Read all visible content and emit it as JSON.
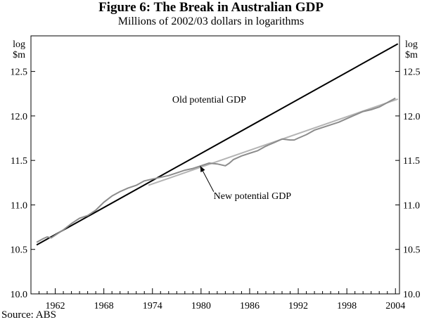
{
  "figure": {
    "title": "Figure 6: The Break in Australian GDP",
    "subtitle": "Millions of 2002/03 dollars in logarithms",
    "source": "Source: ABS"
  },
  "chart_data": {
    "type": "line",
    "title": "Figure 6: The Break in Australian GDP",
    "subtitle": "Millions of 2002/03 dollars in logarithms",
    "ylabel": [
      "log",
      "$m"
    ],
    "xlabel": "",
    "xlim": [
      1959,
      2004.5
    ],
    "ylim": [
      10.0,
      12.9
    ],
    "yticks": [
      "10.0",
      "10.5",
      "11.0",
      "11.5",
      "12.0",
      "12.5"
    ],
    "xticks": [
      "1962",
      "1968",
      "1974",
      "1980",
      "1986",
      "1992",
      "1998",
      "2004"
    ],
    "grid": false,
    "series": [
      {
        "name": "Old potential GDP",
        "color": "#000000",
        "x": [
          1959.7,
          2004.3
        ],
        "y": [
          10.55,
          12.81
        ]
      },
      {
        "name": "New potential GDP",
        "color": "#b4b4b4",
        "x": [
          1973.5,
          2004.3
        ],
        "y": [
          11.22,
          12.19
        ]
      },
      {
        "name": "GDP",
        "color": "#8c8c8c",
        "x": [
          1959.7,
          1960.5,
          1961.0,
          1961.5,
          1962.0,
          1962.5,
          1963.0,
          1964.0,
          1965.0,
          1966.0,
          1967.0,
          1968.0,
          1969.0,
          1970.0,
          1971.0,
          1972.0,
          1973.0,
          1974.0,
          1975.0,
          1976.0,
          1977.0,
          1978.0,
          1979.0,
          1980.0,
          1981.0,
          1982.0,
          1983.0,
          1983.5,
          1984.0,
          1985.0,
          1986.0,
          1987.0,
          1988.0,
          1989.0,
          1990.0,
          1991.0,
          1991.5,
          1992.0,
          1993.0,
          1994.0,
          1995.0,
          1996.0,
          1997.0,
          1998.0,
          1999.0,
          2000.0,
          2001.0,
          2002.0,
          2003.0,
          2004.0
        ],
        "y": [
          10.58,
          10.62,
          10.64,
          10.63,
          10.66,
          10.69,
          10.72,
          10.79,
          10.85,
          10.88,
          10.94,
          11.03,
          11.1,
          11.15,
          11.19,
          11.22,
          11.27,
          11.29,
          11.31,
          11.33,
          11.36,
          11.39,
          11.41,
          11.44,
          11.47,
          11.46,
          11.44,
          11.47,
          11.51,
          11.55,
          11.58,
          11.61,
          11.66,
          11.7,
          11.74,
          11.73,
          11.73,
          11.75,
          11.79,
          11.84,
          11.87,
          11.9,
          11.93,
          11.97,
          12.01,
          12.05,
          12.07,
          12.1,
          12.15,
          12.2
        ]
      }
    ],
    "annotations": [
      {
        "text": "Old potential GDP",
        "x": 1981.0,
        "y": 12.15
      },
      {
        "text": "New potential GDP",
        "x": 1982.0,
        "y": 11.1,
        "arrow_to": [
          1979.9,
          11.46
        ]
      }
    ]
  }
}
